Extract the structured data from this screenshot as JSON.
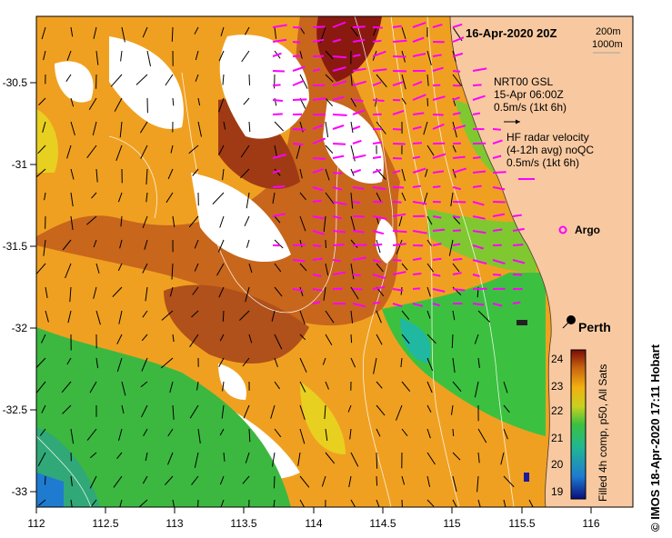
{
  "map": {
    "date_title": "16-Apr-2020 20Z",
    "isobaths": [
      "200m",
      "1000m"
    ],
    "x_ticks": [
      "112",
      "112.5",
      "113",
      "113.5",
      "114",
      "114.5",
      "115",
      "115.5",
      "116"
    ],
    "y_ticks": [
      "-30.5",
      "-31",
      "-31.5",
      "-32",
      "-32.5",
      "-33"
    ],
    "place_label": "Perth",
    "legend": {
      "nrt_line1": "NRT00 GSL",
      "nrt_line2": "15-Apr 06:00Z",
      "nrt_line3": "0.5m/s (1kt 6h)",
      "hf_line1": "HF radar velocity",
      "hf_line2": "(4-12h avg) noQC",
      "hf_line3": "0.5m/s (1kt 6h)",
      "argo_label": "Argo"
    },
    "colorbar": {
      "ticks": [
        "24",
        "23",
        "22",
        "21",
        "20",
        "19"
      ],
      "label": "Filled 4h comp, p50, All Sats"
    },
    "credit": "© IMOS 18-Apr-2020 17:11 Hobart",
    "colors": {
      "land": "#f8c9a0",
      "hf_arrows": "#ff00ff",
      "nrt_arrows": "#000000",
      "coast_box": "#1a1aa0"
    }
  }
}
